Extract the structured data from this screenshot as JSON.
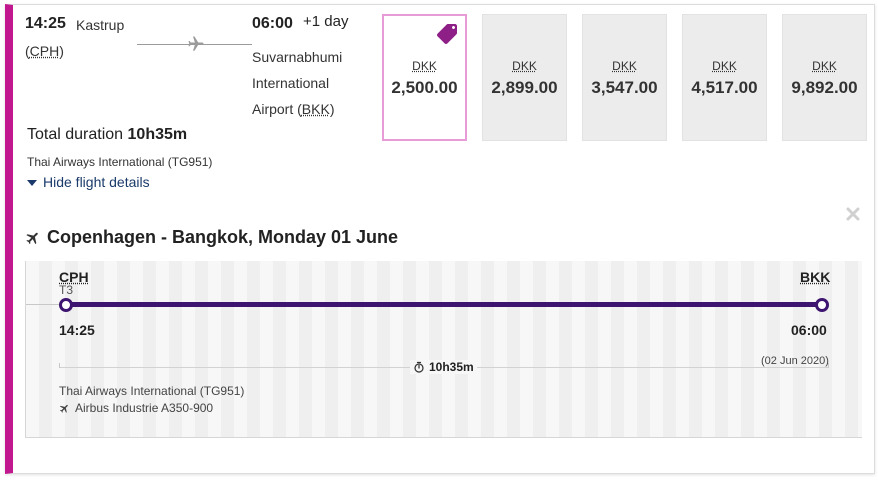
{
  "itinerary": {
    "departure_time": "14:25",
    "departure_place": "Kastrup",
    "departure_code_open": "(",
    "departure_code": "CPH",
    "departure_code_close": ")",
    "arrival_time": "06:00",
    "arrival_day_offset": "+1 day",
    "arrival_place_text": "Suvarnabhumi International Airport (",
    "arrival_code": "BKK",
    "arrival_code_close": ")",
    "total_duration_label": "Total duration",
    "total_duration_value": "10h35m",
    "airline_flight": "Thai Airways International (TG951)",
    "hide_details_label": "Hide flight details"
  },
  "fares": [
    {
      "currency": "DKK",
      "amount": "2,500.00",
      "selected": true
    },
    {
      "currency": "DKK",
      "amount": "2,899.00",
      "selected": false
    },
    {
      "currency": "DKK",
      "amount": "3,547.00",
      "selected": false
    },
    {
      "currency": "DKK",
      "amount": "4,517.00",
      "selected": false
    },
    {
      "currency": "DKK",
      "amount": "9,892.00",
      "selected": false
    }
  ],
  "segment": {
    "title": "Copenhagen - Bangkok, Monday 01 June",
    "from_code": "CPH",
    "from_terminal": "T3",
    "to_code": "BKK",
    "departure_time": "14:25",
    "arrival_time": "06:00",
    "arrival_date": "(02 Jun 2020)",
    "duration": "10h35m",
    "airline_flight": "Thai Airways International (TG951)",
    "aircraft": "Airbus Industrie A350-900"
  },
  "colors": {
    "accent": "#c2188f",
    "route": "#3d1470",
    "selected_border": "#e79bd7",
    "link": "#1a3a6a"
  },
  "icons": {
    "route": "plane-icon",
    "fare_badge": "price-tag-icon",
    "close": "close-icon",
    "segment": "plane-icon",
    "duration": "stopwatch-icon",
    "aircraft": "plane-icon"
  }
}
